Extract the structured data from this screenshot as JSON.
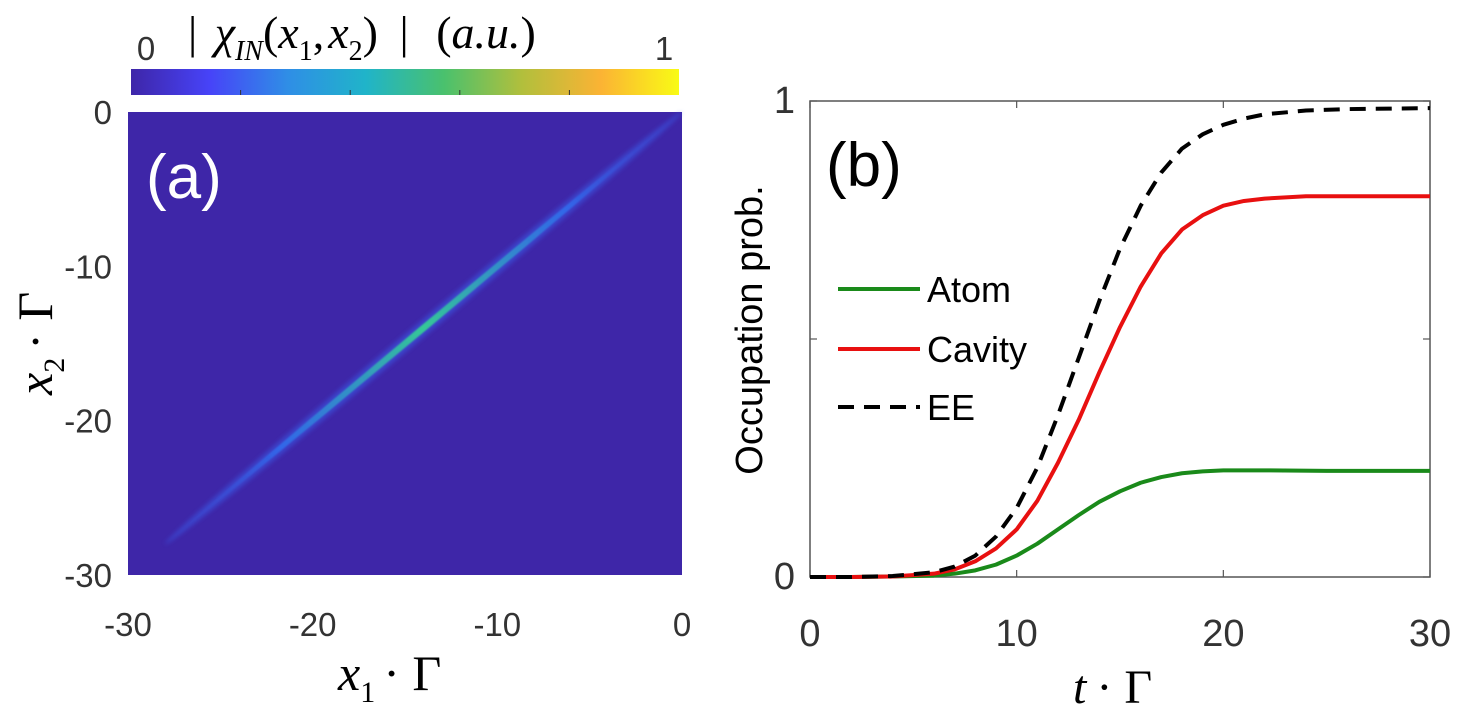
{
  "chart_data": [
    {
      "type": "heatmap",
      "panel_label": "(a)",
      "colorbar": {
        "min_label": "0",
        "max_label": "1",
        "title": "| χ_IN(x_1, x_2) |  (a.u.)",
        "range": [
          0,
          1
        ],
        "colormap": [
          "#3e26a8",
          "#4743f8",
          "#2f8ee6",
          "#20b4c9",
          "#4ac16d",
          "#b2bf3c",
          "#fbb334",
          "#f9fb15"
        ]
      },
      "xlabel": "x_1 · Γ",
      "ylabel": "x_2 · Γ",
      "xlim": [
        -30,
        0
      ],
      "ylim": [
        -30,
        0
      ],
      "xticks": [
        "-30",
        "-20",
        "-10",
        "0"
      ],
      "yticks": [
        "0",
        "-10",
        "-20",
        "-30"
      ],
      "background_color": "#3e26a8",
      "feature": {
        "description_shown": "narrow ridge along diagonal",
        "ridge": {
          "from": [
            -28,
            -28
          ],
          "to": [
            0,
            0
          ],
          "peak_at": [
            -14,
            -14
          ],
          "peak_value": 0.5
        }
      }
    },
    {
      "type": "line",
      "panel_label": "(b)",
      "xlabel": "t · Γ",
      "ylabel": "Occupation prob.",
      "xlim": [
        0,
        30
      ],
      "ylim": [
        0,
        1
      ],
      "xticks": [
        "0",
        "10",
        "20",
        "30"
      ],
      "yticks": [
        "0",
        "1"
      ],
      "legend": {
        "placement": "middle-left"
      },
      "series": [
        {
          "name": "Atom",
          "color": "#1a8a1a",
          "style": "solid",
          "x": [
            0,
            2,
            4,
            6,
            7,
            8,
            9,
            10,
            11,
            12,
            13,
            14,
            15,
            16,
            17,
            18,
            19,
            20,
            22,
            25,
            30
          ],
          "y": [
            0,
            0,
            0.001,
            0.003,
            0.007,
            0.014,
            0.026,
            0.045,
            0.07,
            0.1,
            0.13,
            0.158,
            0.18,
            0.198,
            0.21,
            0.218,
            0.222,
            0.224,
            0.224,
            0.223,
            0.223
          ]
        },
        {
          "name": "Cavity",
          "color": "#e81010",
          "style": "solid",
          "x": [
            0,
            2,
            4,
            6,
            7,
            8,
            9,
            10,
            11,
            12,
            13,
            14,
            15,
            16,
            17,
            18,
            19,
            20,
            21,
            22,
            24,
            26,
            28,
            30
          ],
          "y": [
            0,
            0,
            0.001,
            0.007,
            0.016,
            0.033,
            0.06,
            0.1,
            0.16,
            0.24,
            0.33,
            0.43,
            0.525,
            0.61,
            0.68,
            0.73,
            0.76,
            0.78,
            0.79,
            0.795,
            0.8,
            0.8,
            0.8,
            0.8
          ]
        },
        {
          "name": "EE",
          "color": "#000000",
          "style": "dashed",
          "x": [
            0,
            2,
            4,
            6,
            7,
            8,
            9,
            10,
            11,
            12,
            13,
            14,
            15,
            16,
            17,
            18,
            19,
            20,
            21,
            22,
            24,
            26,
            28,
            30
          ],
          "y": [
            0,
            0,
            0.002,
            0.01,
            0.022,
            0.045,
            0.085,
            0.145,
            0.23,
            0.34,
            0.46,
            0.58,
            0.69,
            0.78,
            0.85,
            0.9,
            0.93,
            0.95,
            0.963,
            0.972,
            0.98,
            0.983,
            0.984,
            0.985
          ]
        }
      ]
    }
  ]
}
